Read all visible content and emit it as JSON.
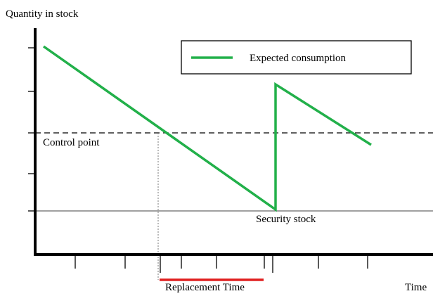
{
  "axis": {
    "y_label": "Quantity in stock",
    "x_label": "Time"
  },
  "legend": {
    "label": "Expected consumption"
  },
  "annotations": {
    "control_point": "Control point",
    "security_stock": "Security stock",
    "replacement_time": "Replacement Time"
  }
}
